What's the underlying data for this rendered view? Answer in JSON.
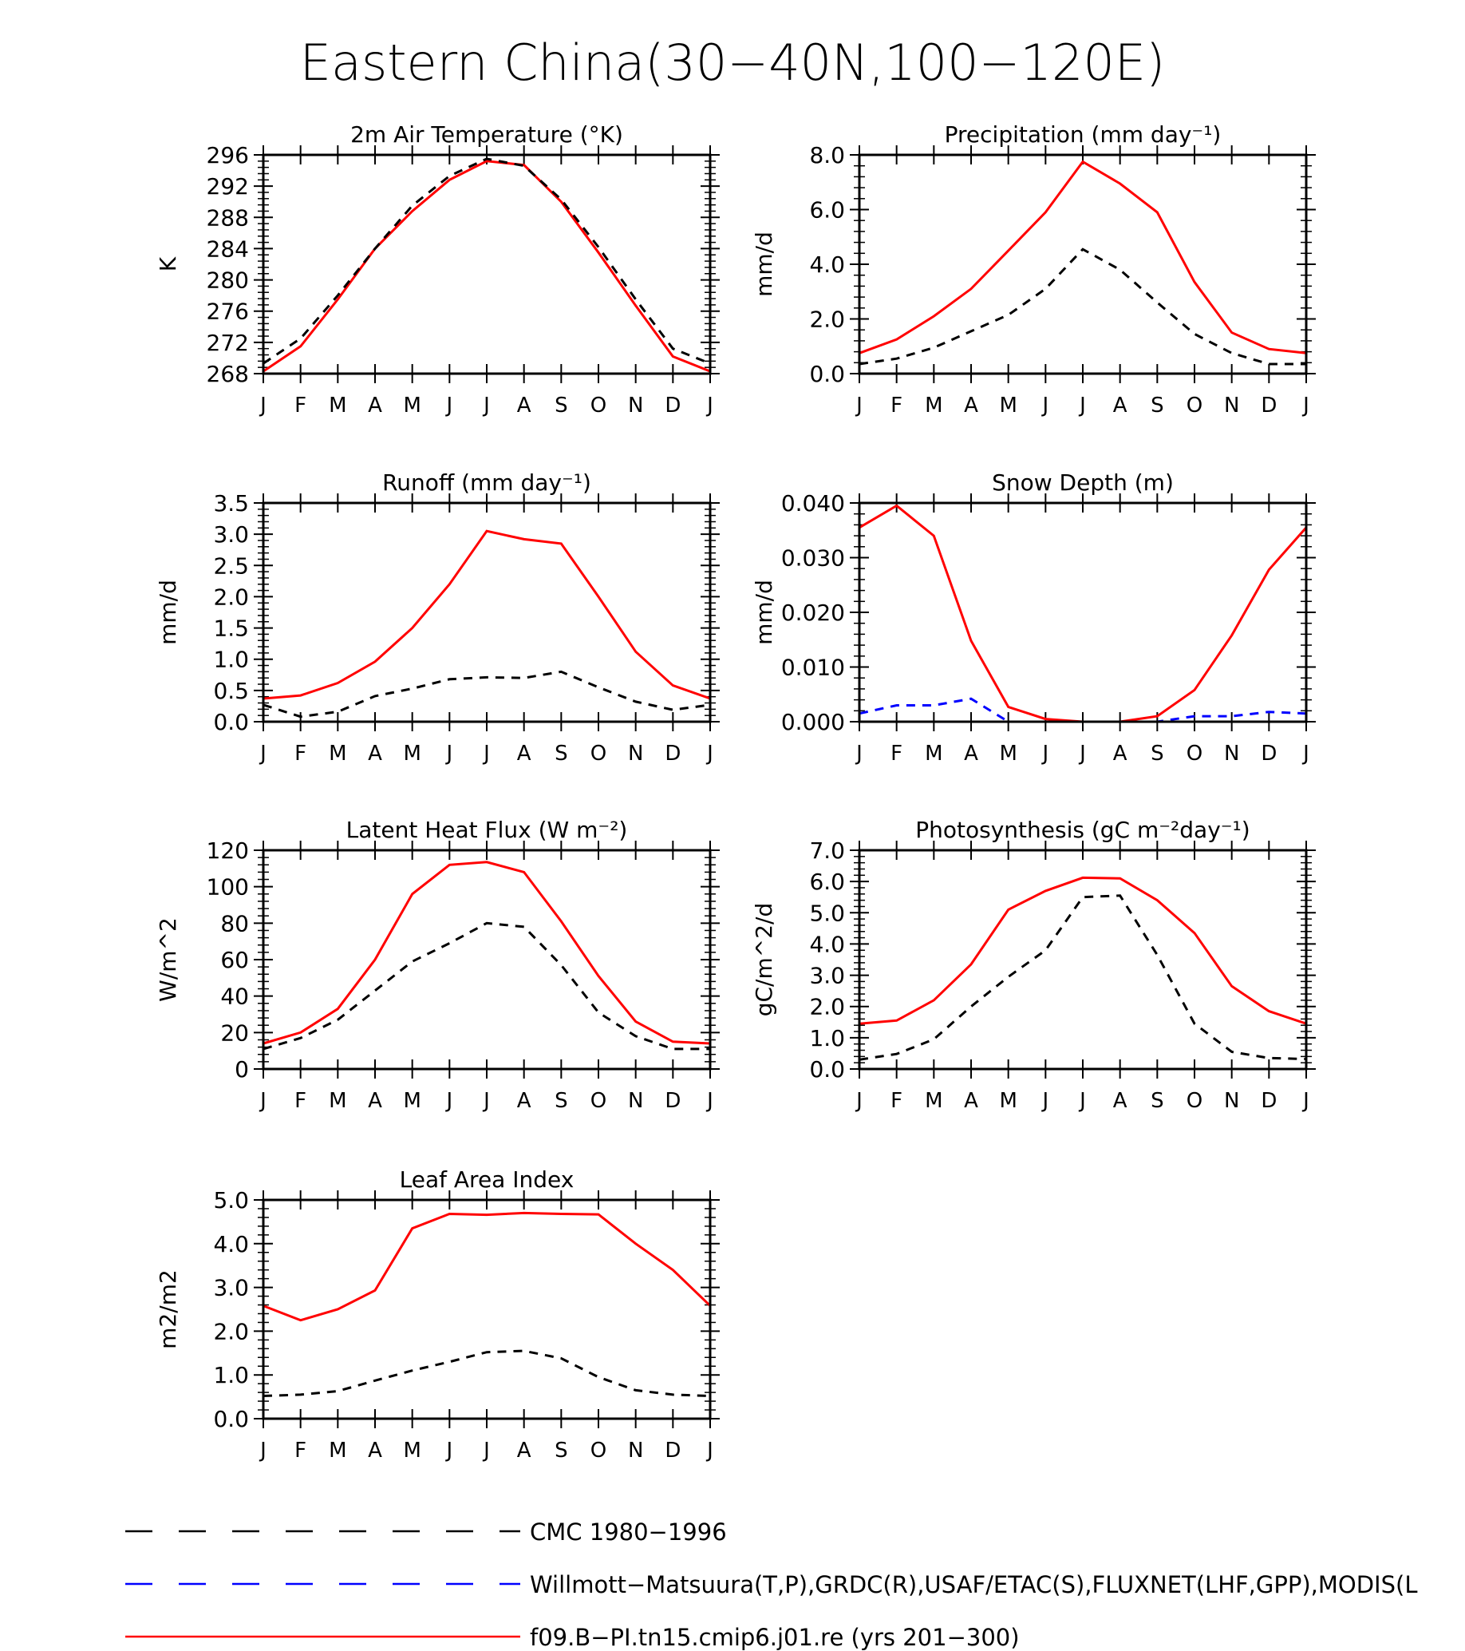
{
  "figure_title": "Eastern China(30−40N,100−120E)",
  "month_labels": [
    "J",
    "F",
    "M",
    "A",
    "M",
    "J",
    "J",
    "A",
    "S",
    "O",
    "N",
    "D",
    "J"
  ],
  "colors": {
    "model": "#ff0000",
    "cmc": "#000000",
    "obs": "#0000ff",
    "axis": "#000000"
  },
  "legend": [
    {
      "key": "cmc",
      "label": "CMC 1980−1996",
      "style": "dashed",
      "color": "#000000"
    },
    {
      "key": "obs",
      "label": "Willmott−Matsuura(T,P),GRDC(R),USAF/ETAC(S),FLUXNET(LHF,GPP),MODIS(L",
      "style": "dashed",
      "color": "#0000ff"
    },
    {
      "key": "model",
      "label": "f09.B−PI.tn15.cmip6.j01.re (yrs 201−300)",
      "style": "solid",
      "color": "#ff0000"
    }
  ],
  "chart_data": [
    {
      "type": "line",
      "title": "2m Air Temperature (°K)",
      "ylabel": "K",
      "ylim": [
        268,
        296
      ],
      "yticks": [
        "268",
        "272",
        "276",
        "280",
        "284",
        "288",
        "292",
        "296"
      ],
      "ytick_values": [
        268,
        272,
        276,
        280,
        284,
        288,
        292,
        296
      ],
      "series": [
        {
          "name": "f09.B−PI.tn15.cmip6.j01.re (yrs 201−300)",
          "key": "model",
          "values": [
            268.3,
            271.5,
            277.5,
            284.0,
            288.8,
            292.8,
            295.2,
            294.7,
            290.0,
            283.5,
            276.7,
            270.2,
            268.3
          ]
        },
        {
          "name": "CMC 1980−1996",
          "key": "cmc",
          "values": [
            269.3,
            272.5,
            278.0,
            284.0,
            289.5,
            293.3,
            295.5,
            294.6,
            290.3,
            284.2,
            277.5,
            271.2,
            269.3
          ]
        }
      ]
    },
    {
      "type": "line",
      "title": "Precipitation (mm day⁻¹)",
      "ylabel": "mm/d",
      "ylim": [
        0,
        8
      ],
      "yticks": [
        "0.0",
        "2.0",
        "4.0",
        "6.0",
        "8.0"
      ],
      "ytick_values": [
        0,
        2,
        4,
        6,
        8
      ],
      "series": [
        {
          "name": "f09.B−PI.tn15.cmip6.j01.re (yrs 201−300)",
          "key": "model",
          "values": [
            0.75,
            1.25,
            2.1,
            3.1,
            4.5,
            5.9,
            7.75,
            6.95,
            5.9,
            3.35,
            1.5,
            0.9,
            0.75
          ]
        },
        {
          "name": "CMC 1980−1996",
          "key": "cmc",
          "values": [
            0.35,
            0.55,
            0.95,
            1.55,
            2.15,
            3.1,
            4.55,
            3.8,
            2.6,
            1.45,
            0.75,
            0.35,
            0.35
          ]
        }
      ]
    },
    {
      "type": "line",
      "title": "Runoff (mm day⁻¹)",
      "ylabel": "mm/d",
      "ylim": [
        0,
        3.5
      ],
      "yticks": [
        "0.0",
        "0.5",
        "1.0",
        "1.5",
        "2.0",
        "2.5",
        "3.0",
        "3.5"
      ],
      "ytick_values": [
        0,
        0.5,
        1.0,
        1.5,
        2.0,
        2.5,
        3.0,
        3.5
      ],
      "series": [
        {
          "name": "f09.B−PI.tn15.cmip6.j01.re (yrs 201−300)",
          "key": "model",
          "values": [
            0.37,
            0.42,
            0.62,
            0.96,
            1.5,
            2.2,
            3.05,
            2.92,
            2.85,
            2.0,
            1.12,
            0.58,
            0.37
          ]
        },
        {
          "name": "CMC 1980−1996",
          "key": "cmc",
          "values": [
            0.27,
            0.08,
            0.16,
            0.41,
            0.53,
            0.68,
            0.71,
            0.7,
            0.8,
            0.55,
            0.32,
            0.19,
            0.27
          ]
        }
      ]
    },
    {
      "type": "line",
      "title": "Snow Depth (m)",
      "ylabel": "mm/d",
      "ylim": [
        0,
        0.04
      ],
      "yticks": [
        "0.000",
        "0.010",
        "0.020",
        "0.030",
        "0.040"
      ],
      "ytick_values": [
        0,
        0.01,
        0.02,
        0.03,
        0.04
      ],
      "series": [
        {
          "name": "f09.B−PI.tn15.cmip6.j01.re (yrs 201−300)",
          "key": "model",
          "values": [
            0.0355,
            0.0395,
            0.034,
            0.0148,
            0.0027,
            0.0005,
            0.0,
            0.0,
            0.001,
            0.0058,
            0.0158,
            0.0278,
            0.0355
          ]
        },
        {
          "name": "CMC 1980−1996",
          "key": "cmc",
          "values": [
            0,
            0,
            0,
            0,
            0,
            0,
            0,
            0,
            0,
            0,
            0,
            0,
            0
          ]
        },
        {
          "name": "Willmott−Matsuura(T,P),GRDC(R),USAF/ETAC(S),FLUXNET(LHF,GPP),MODIS(L",
          "key": "obs",
          "values": [
            0.0015,
            0.003,
            0.003,
            0.0042,
            0.0,
            0.0,
            0.0,
            0.0,
            0.0,
            0.001,
            0.001,
            0.0018,
            0.0015
          ]
        }
      ]
    },
    {
      "type": "line",
      "title": "Latent Heat Flux (W m⁻²)",
      "ylabel": "W/m^2",
      "ylim": [
        0,
        120
      ],
      "yticks": [
        "0",
        "20",
        "40",
        "60",
        "80",
        "100",
        "120"
      ],
      "ytick_values": [
        0,
        20,
        40,
        60,
        80,
        100,
        120
      ],
      "series": [
        {
          "name": "f09.B−PI.tn15.cmip6.j01.re (yrs 201−300)",
          "key": "model",
          "values": [
            14,
            20,
            33,
            60,
            96,
            112,
            113.5,
            108,
            81,
            51,
            26,
            15,
            14
          ]
        },
        {
          "name": "CMC 1980−1996",
          "key": "cmc",
          "values": [
            11,
            17,
            27,
            43,
            59,
            69,
            80,
            78,
            57,
            31,
            18,
            11,
            11
          ]
        }
      ]
    },
    {
      "type": "line",
      "title": "Photosynthesis (gC m⁻²day⁻¹)",
      "ylabel": "gC/m^2/d",
      "ylim": [
        0,
        7
      ],
      "yticks": [
        "0.0",
        "1.0",
        "2.0",
        "3.0",
        "4.0",
        "5.0",
        "6.0",
        "7.0"
      ],
      "ytick_values": [
        0,
        1,
        2,
        3,
        4,
        5,
        6,
        7
      ],
      "series": [
        {
          "name": "f09.B−PI.tn15.cmip6.j01.re (yrs 201−300)",
          "key": "model",
          "values": [
            1.45,
            1.55,
            2.2,
            3.35,
            5.1,
            5.7,
            6.12,
            6.1,
            5.4,
            4.35,
            2.65,
            1.85,
            1.45
          ]
        },
        {
          "name": "CMC 1980−1996",
          "key": "cmc",
          "values": [
            0.3,
            0.48,
            0.95,
            2.0,
            2.95,
            3.8,
            5.5,
            5.55,
            3.65,
            1.45,
            0.55,
            0.35,
            0.32
          ]
        }
      ]
    },
    {
      "type": "line",
      "title": "Leaf Area Index",
      "ylabel": "m2/m2",
      "ylim": [
        0,
        5
      ],
      "yticks": [
        "0.0",
        "1.0",
        "2.0",
        "3.0",
        "4.0",
        "5.0"
      ],
      "ytick_values": [
        0,
        1,
        2,
        3,
        4,
        5
      ],
      "series": [
        {
          "name": "f09.B−PI.tn15.cmip6.j01.re (yrs 201−300)",
          "key": "model",
          "values": [
            2.58,
            2.25,
            2.5,
            2.93,
            4.35,
            4.68,
            4.66,
            4.7,
            4.68,
            4.67,
            4.0,
            3.4,
            2.58
          ]
        },
        {
          "name": "CMC 1980−1996",
          "key": "cmc",
          "values": [
            0.52,
            0.55,
            0.63,
            0.87,
            1.1,
            1.3,
            1.52,
            1.55,
            1.38,
            0.95,
            0.65,
            0.55,
            0.52
          ]
        }
      ]
    }
  ]
}
